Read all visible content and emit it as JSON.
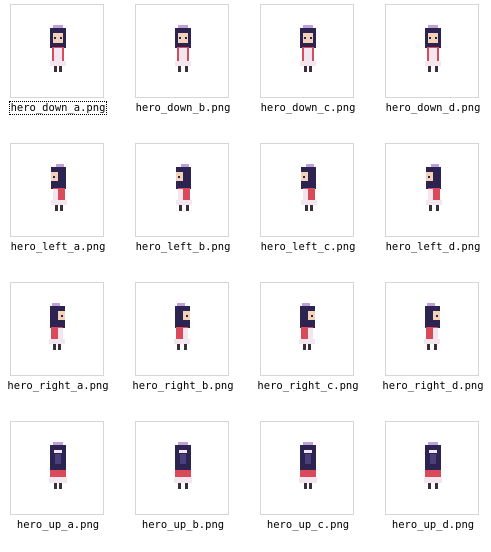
{
  "colors": {
    "thumb_border": "#d6d6d6",
    "hair": "#2c2350",
    "hair_shade": "#4a3f7a",
    "skin": "#f2d2b8",
    "dress": "#d94a5a",
    "apron": "#f4e6ee",
    "shoes": "#3a3038",
    "bow": "#c0a0d8"
  },
  "files": [
    {
      "name": "hero_down_a.png",
      "direction": "down",
      "selected": true
    },
    {
      "name": "hero_down_b.png",
      "direction": "down",
      "selected": false
    },
    {
      "name": "hero_down_c.png",
      "direction": "down",
      "selected": false
    },
    {
      "name": "hero_down_d.png",
      "direction": "down",
      "selected": false
    },
    {
      "name": "hero_left_a.png",
      "direction": "left",
      "selected": false
    },
    {
      "name": "hero_left_b.png",
      "direction": "left",
      "selected": false
    },
    {
      "name": "hero_left_c.png",
      "direction": "left",
      "selected": false
    },
    {
      "name": "hero_left_d.png",
      "direction": "left",
      "selected": false
    },
    {
      "name": "hero_right_a.png",
      "direction": "right",
      "selected": false
    },
    {
      "name": "hero_right_b.png",
      "direction": "right",
      "selected": false
    },
    {
      "name": "hero_right_c.png",
      "direction": "right",
      "selected": false
    },
    {
      "name": "hero_right_d.png",
      "direction": "right",
      "selected": false
    },
    {
      "name": "hero_up_a.png",
      "direction": "up",
      "selected": false
    },
    {
      "name": "hero_up_b.png",
      "direction": "up",
      "selected": false
    },
    {
      "name": "hero_up_c.png",
      "direction": "up",
      "selected": false
    },
    {
      "name": "hero_up_d.png",
      "direction": "up",
      "selected": false
    }
  ]
}
